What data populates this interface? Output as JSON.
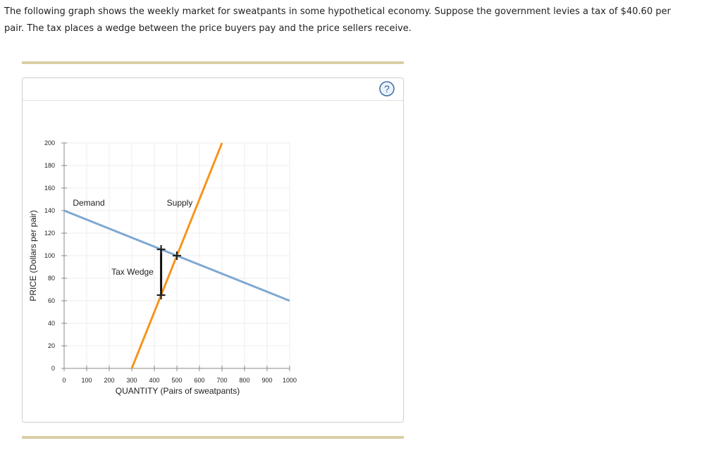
{
  "question": {
    "lines": [
      "The following graph shows the weekly market for sweatpants in some hypothetical economy. Suppose the government levies a tax of $40.60 per",
      "pair. The tax places a wedge between the price buyers pay and the price sellers receive."
    ]
  },
  "help_icon": "?",
  "chart_data": {
    "type": "line",
    "x_label": "QUANTITY (Pairs of sweatpants)",
    "y_label": "PRICE (Dollars per pair)",
    "series": [
      {
        "name": "Demand",
        "color": "#7fa9d1",
        "x": [
          0,
          1000
        ],
        "values": [
          140,
          60
        ]
      },
      {
        "name": "Supply",
        "color": "#f7941d",
        "x": [
          300,
          700
        ],
        "values": [
          0,
          200
        ]
      }
    ],
    "equilibrium": {
      "x": 500,
      "y": 100
    },
    "tax_wedge": {
      "label": "Tax Wedge",
      "x": 430,
      "top": 105.6,
      "bottom": 65
    },
    "xlim": [
      0,
      1000
    ],
    "xticks": [
      0,
      100,
      200,
      300,
      400,
      500,
      600,
      700,
      800,
      900,
      1000
    ],
    "ylim": [
      0,
      200
    ],
    "yticks": [
      0,
      20,
      40,
      60,
      80,
      100,
      120,
      140,
      160,
      180,
      200
    ],
    "grid": true
  }
}
